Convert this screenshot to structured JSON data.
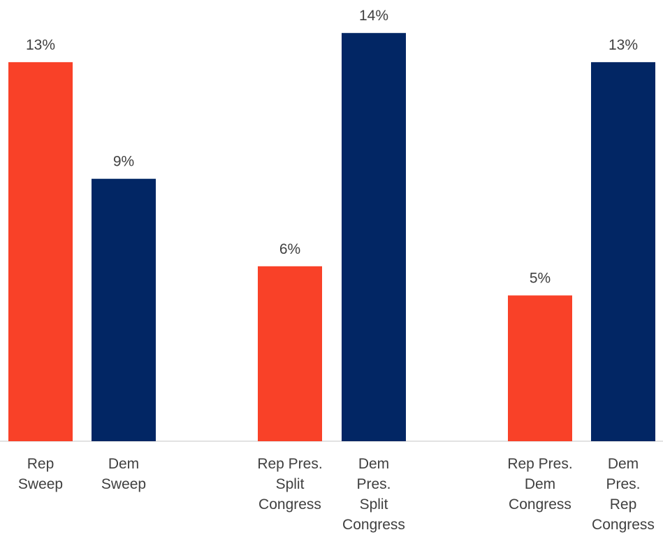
{
  "chart_data": {
    "type": "bar",
    "ylim": [
      0,
      15
    ],
    "grid": false,
    "legend": "none",
    "bars": [
      {
        "label_lines": [
          "Rep",
          "Sweep"
        ],
        "value": 13,
        "value_label": "13%",
        "color": "#f94128"
      },
      {
        "label_lines": [
          "Dem",
          "Sweep"
        ],
        "value": 9,
        "value_label": "9%",
        "color": "#022664"
      },
      {
        "label_lines": [
          "Rep Pres.",
          "Split",
          "Congress"
        ],
        "value": 6,
        "value_label": "6%",
        "color": "#f94128"
      },
      {
        "label_lines": [
          "Dem",
          "Pres.",
          "Split",
          "Congress"
        ],
        "value": 14,
        "value_label": "14%",
        "color": "#022664"
      },
      {
        "label_lines": [
          "Rep Pres.",
          "Dem",
          "Congress"
        ],
        "value": 5,
        "value_label": "5%",
        "color": "#f94128"
      },
      {
        "label_lines": [
          "Dem",
          "Pres.",
          "Rep",
          "Congress"
        ],
        "value": 13,
        "value_label": "13%",
        "color": "#022664"
      }
    ]
  }
}
